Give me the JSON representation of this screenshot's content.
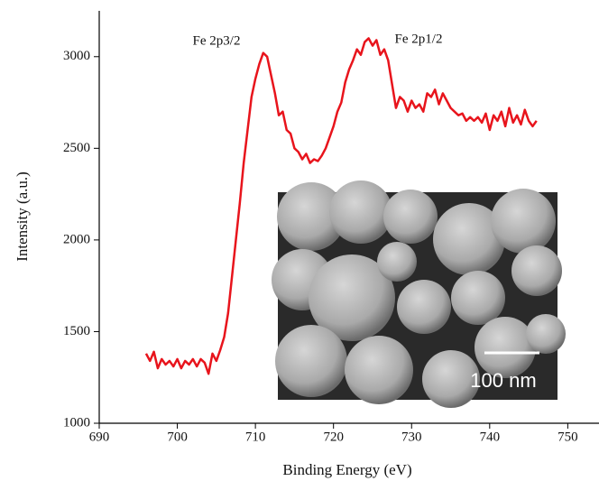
{
  "chart_data": {
    "type": "line",
    "xlabel": "Binding Energy (eV)",
    "ylabel": "Intensity (a.u.)",
    "annotations": [
      "Fe 2p3/2",
      "Fe 2p1/2"
    ],
    "inset_scale_label": "100 nm",
    "xlim": [
      690,
      754
    ],
    "xticks": [
      690,
      700,
      710,
      720,
      730,
      740,
      750
    ],
    "ylim": [
      1000,
      3250
    ],
    "yticks": [
      1000,
      1500,
      2000,
      2500,
      3000
    ],
    "x": [
      696,
      696.5,
      697,
      697.5,
      698,
      698.5,
      699,
      699.5,
      700,
      700.5,
      701,
      701.5,
      702,
      702.5,
      703,
      703.5,
      704,
      704.5,
      705,
      705.5,
      706,
      706.5,
      707,
      707.5,
      708,
      708.5,
      709,
      709.5,
      710,
      710.5,
      711,
      711.5,
      712,
      712.5,
      713,
      713.5,
      714,
      714.5,
      715,
      715.5,
      716,
      716.5,
      717,
      717.5,
      718,
      718.5,
      719,
      719.5,
      720,
      720.5,
      721,
      721.5,
      722,
      722.5,
      723,
      723.5,
      724,
      724.5,
      725,
      725.5,
      726,
      726.5,
      727,
      727.5,
      728,
      728.5,
      729,
      729.5,
      730,
      730.5,
      731,
      731.5,
      732,
      732.5,
      733,
      733.5,
      734,
      734.5,
      735,
      735.5,
      736,
      736.5,
      737,
      737.5,
      738,
      738.5,
      739,
      739.5,
      740,
      740.5,
      741,
      741.5,
      742,
      742.5,
      743,
      743.5,
      744,
      744.5,
      745,
      745.5,
      746
    ],
    "series": [
      {
        "color": "#e8141c",
        "values": [
          1380,
          1340,
          1390,
          1300,
          1350,
          1320,
          1340,
          1310,
          1350,
          1300,
          1340,
          1320,
          1350,
          1310,
          1350,
          1330,
          1270,
          1380,
          1340,
          1400,
          1470,
          1600,
          1800,
          2000,
          2200,
          2420,
          2600,
          2780,
          2880,
          2960,
          3020,
          3000,
          2900,
          2800,
          2680,
          2700,
          2600,
          2580,
          2500,
          2480,
          2440,
          2470,
          2420,
          2440,
          2430,
          2460,
          2500,
          2560,
          2620,
          2700,
          2750,
          2860,
          2930,
          2980,
          3040,
          3010,
          3080,
          3100,
          3060,
          3090,
          3010,
          3040,
          2980,
          2850,
          2720,
          2780,
          2760,
          2700,
          2760,
          2720,
          2740,
          2700,
          2800,
          2780,
          2820,
          2740,
          2800,
          2760,
          2720,
          2700,
          2680,
          2690,
          2650,
          2670,
          2650,
          2670,
          2640,
          2690,
          2600,
          2680,
          2650,
          2700,
          2620,
          2720,
          2640,
          2680,
          2630,
          2710,
          2650,
          2620,
          2650
        ]
      }
    ]
  }
}
